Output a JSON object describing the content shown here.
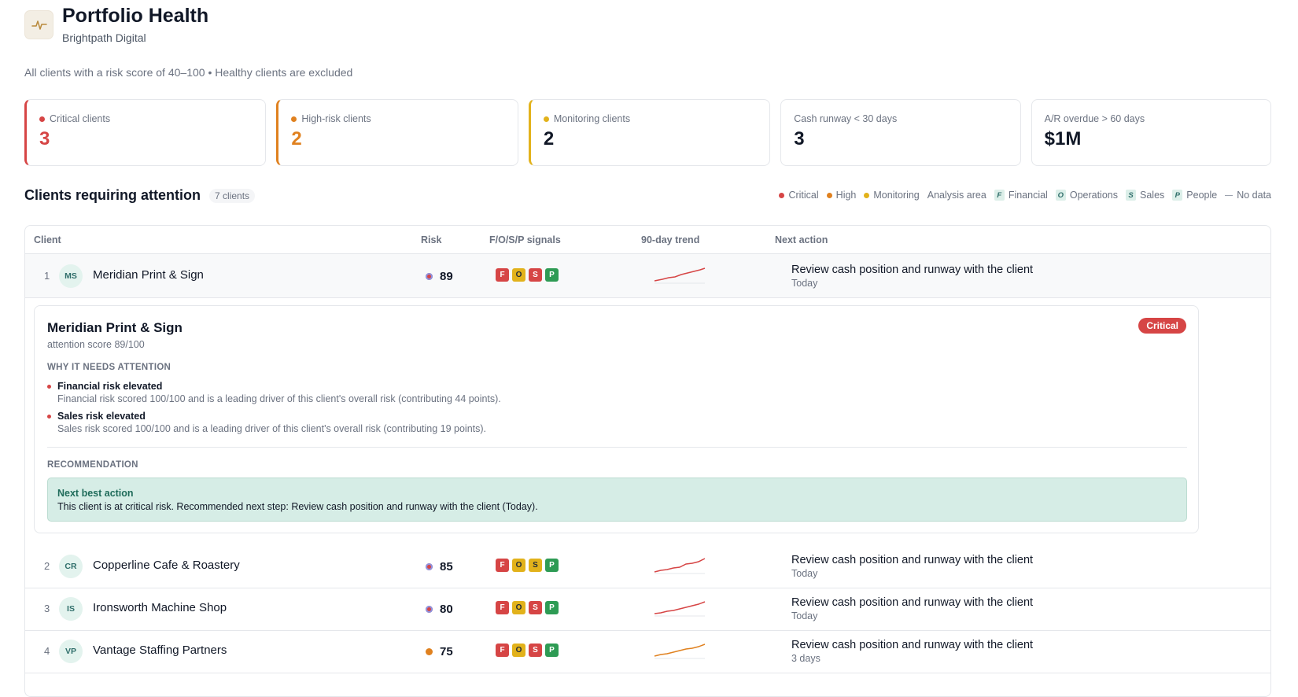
{
  "header": {
    "title": "Portfolio Health",
    "subtitle": "Brightpath Digital",
    "scope_note": "All clients with a risk score of 40–100 • Healthy clients are excluded",
    "icon": "pulse-icon"
  },
  "kpis": [
    {
      "label": "Critical clients",
      "value": "3",
      "color": "#d64545"
    },
    {
      "label": "High-risk clients",
      "value": "2",
      "color": "#e0811f"
    },
    {
      "label": "Monitoring clients",
      "value": "2",
      "color": "#e2b21b"
    },
    {
      "label": "Cash runway < 30 days",
      "value": "3"
    },
    {
      "label": "A/R overdue > 60 days",
      "value": "$1M"
    }
  ],
  "section": {
    "title": "Clients requiring attention",
    "count": "7 clients"
  },
  "legend": {
    "critical": "Critical",
    "high": "High",
    "monitoring": "Monitoring",
    "analysis_area": "Analysis area",
    "financial_chip": "F",
    "financial": "Financial",
    "operations_chip": "O",
    "operations": "Operations",
    "sales_chip": "S",
    "sales": "Sales",
    "people_chip": "P",
    "people": "People",
    "no_data": "No data"
  },
  "table": {
    "columns": {
      "client": "Client",
      "risk": "Risk",
      "signals": "F/O/S/P signals",
      "trend": "90-day trend",
      "next_action": "Next action"
    },
    "rows": [
      {
        "rank": "1",
        "initials": "MS",
        "name": "Meridian Print & Sign",
        "risk": "89",
        "level": "critical",
        "signals": [
          "F",
          "O",
          "S",
          "P"
        ],
        "action": "Review cash position and runway with the client",
        "when": "Today"
      },
      {
        "rank": "2",
        "initials": "CR",
        "name": "Copperline Cafe & Roastery",
        "risk": "85",
        "level": "critical",
        "signals": [
          "F",
          "O",
          "S",
          "P"
        ],
        "action": "Review cash position and runway with the client",
        "when": "Today"
      },
      {
        "rank": "3",
        "initials": "IS",
        "name": "Ironsworth Machine Shop",
        "risk": "80",
        "level": "critical",
        "signals": [
          "F",
          "O",
          "S",
          "P"
        ],
        "action": "Review cash position and runway with the client",
        "when": "Today"
      },
      {
        "rank": "4",
        "initials": "VP",
        "name": "Vantage Staffing Partners",
        "risk": "75",
        "level": "high",
        "signals": [
          "F",
          "O",
          "S",
          "P"
        ],
        "action": "Review cash position and runway with the client",
        "when": "3 days"
      }
    ]
  },
  "detail": {
    "name": "Meridian Print & Sign",
    "score": "attention score 89/100",
    "badge": "Critical",
    "why_heading": "WHY IT NEEDS ATTENTION",
    "reasons": [
      {
        "title": "Financial risk elevated",
        "desc": "Financial risk scored 100/100 and is a leading driver of this client's overall risk (contributing 44 points)."
      },
      {
        "title": "Sales risk elevated",
        "desc": "Sales risk scored 100/100 and is a leading driver of this client's overall risk (contributing 19 points)."
      }
    ],
    "rec_heading": "RECOMMENDATION",
    "nba_title": "Next best action",
    "nba_text": "This client is at critical risk. Recommended next step: Review cash position and runway with the client (Today)."
  },
  "colors": {
    "critical": "#d64545",
    "high": "#e0811f",
    "monitoring": "#e2b21b",
    "signal_green": "#2e9b54",
    "accent_teal": "#1f6b5a"
  }
}
